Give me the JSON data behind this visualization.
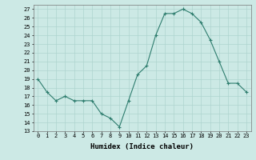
{
  "x": [
    0,
    1,
    2,
    3,
    4,
    5,
    6,
    7,
    8,
    9,
    10,
    11,
    12,
    13,
    14,
    15,
    16,
    17,
    18,
    19,
    20,
    21,
    22,
    23
  ],
  "y": [
    19,
    17.5,
    16.5,
    17,
    16.5,
    16.5,
    16.5,
    15,
    14.5,
    13.5,
    16.5,
    19.5,
    20.5,
    24,
    26.5,
    26.5,
    27,
    26.5,
    25.5,
    23.5,
    21,
    18.5,
    18.5,
    17.5
  ],
  "line_color": "#2e7d6e",
  "marker_color": "#2e7d6e",
  "bg_color": "#cce9e5",
  "grid_color": "#aed4cf",
  "xlabel": "Humidex (Indice chaleur)",
  "xlim": [
    -0.5,
    23.5
  ],
  "ylim": [
    13,
    27.5
  ],
  "yticks": [
    13,
    14,
    15,
    16,
    17,
    18,
    19,
    20,
    21,
    22,
    23,
    24,
    25,
    26,
    27
  ],
  "xticks": [
    0,
    1,
    2,
    3,
    4,
    5,
    6,
    7,
    8,
    9,
    10,
    11,
    12,
    13,
    14,
    15,
    16,
    17,
    18,
    19,
    20,
    21,
    22,
    23
  ],
  "tick_fontsize": 5.0,
  "xlabel_fontsize": 6.5,
  "marker_size": 2.0,
  "line_width": 0.8
}
